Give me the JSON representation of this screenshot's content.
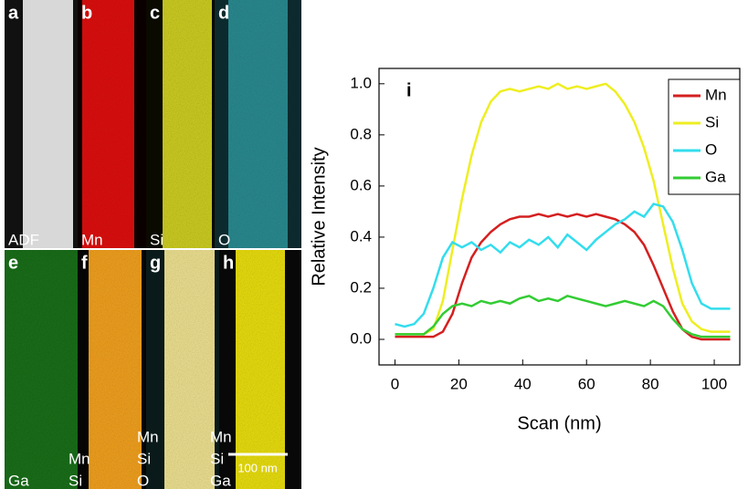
{
  "panels": [
    {
      "letter": "a",
      "labels": [
        "ADF"
      ]
    },
    {
      "letter": "b",
      "labels": [
        "Mn"
      ]
    },
    {
      "letter": "c",
      "labels": [
        "Si"
      ]
    },
    {
      "letter": "d",
      "labels": [
        "O"
      ]
    },
    {
      "letter": "e",
      "labels": [
        "Ga"
      ]
    },
    {
      "letter": "f",
      "labels": [
        "Mn",
        "Si"
      ]
    },
    {
      "letter": "g",
      "labels": [
        "Mn",
        "Si",
        "O"
      ]
    },
    {
      "letter": "h",
      "labels": [
        "Mn",
        "Si",
        "Ga"
      ]
    }
  ],
  "scale_bar": "100 nm",
  "chart_data": {
    "type": "line",
    "panel_label": "i",
    "x_label": "Scan (nm)",
    "y_label": "Relative Intensity",
    "xlim": [
      -5,
      108
    ],
    "ylim": [
      -0.1,
      1.06
    ],
    "xticks": [
      0,
      20,
      40,
      60,
      80,
      100
    ],
    "yticks": [
      {
        "value": 0,
        "label": "0.0"
      },
      0.2,
      0.4,
      0.6,
      0.8,
      {
        "value": 1,
        "label": "1.0"
      }
    ],
    "legend": "upper right",
    "x": [
      0,
      3,
      6,
      9,
      12,
      15,
      18,
      21,
      24,
      27,
      30,
      33,
      36,
      39,
      42,
      45,
      48,
      51,
      54,
      57,
      60,
      63,
      66,
      69,
      72,
      75,
      78,
      81,
      84,
      87,
      90,
      93,
      96,
      99,
      102,
      105
    ],
    "series": [
      {
        "name": "Mn",
        "color": "#d42020",
        "values": [
          0.01,
          0.01,
          0.01,
          0.01,
          0.01,
          0.03,
          0.1,
          0.22,
          0.32,
          0.38,
          0.42,
          0.45,
          0.47,
          0.48,
          0.48,
          0.49,
          0.48,
          0.49,
          0.48,
          0.49,
          0.48,
          0.49,
          0.48,
          0.47,
          0.45,
          0.42,
          0.37,
          0.29,
          0.2,
          0.11,
          0.04,
          0.01,
          0,
          0,
          0,
          0
        ]
      },
      {
        "name": "Si",
        "color": "#eeee22",
        "values": [
          0.02,
          0.02,
          0.02,
          0.02,
          0.04,
          0.15,
          0.35,
          0.55,
          0.72,
          0.85,
          0.93,
          0.97,
          0.98,
          0.97,
          0.98,
          0.99,
          0.98,
          1.0,
          0.98,
          0.99,
          0.98,
          0.99,
          1.0,
          0.97,
          0.92,
          0.85,
          0.75,
          0.62,
          0.45,
          0.28,
          0.14,
          0.07,
          0.04,
          0.03,
          0.03,
          0.03
        ]
      },
      {
        "name": "O",
        "color": "#33dded",
        "values": [
          0.06,
          0.05,
          0.06,
          0.1,
          0.2,
          0.32,
          0.38,
          0.36,
          0.38,
          0.35,
          0.37,
          0.34,
          0.38,
          0.36,
          0.39,
          0.37,
          0.4,
          0.36,
          0.41,
          0.38,
          0.35,
          0.39,
          0.42,
          0.45,
          0.47,
          0.5,
          0.48,
          0.53,
          0.52,
          0.46,
          0.35,
          0.22,
          0.14,
          0.12,
          0.12,
          0.12
        ]
      },
      {
        "name": "Ga",
        "color": "#33cc33",
        "values": [
          0.02,
          0.02,
          0.02,
          0.02,
          0.05,
          0.1,
          0.13,
          0.14,
          0.13,
          0.15,
          0.14,
          0.15,
          0.14,
          0.16,
          0.17,
          0.15,
          0.16,
          0.15,
          0.17,
          0.16,
          0.15,
          0.14,
          0.13,
          0.14,
          0.15,
          0.14,
          0.13,
          0.15,
          0.13,
          0.08,
          0.04,
          0.02,
          0.01,
          0.01,
          0.01,
          0.01
        ]
      }
    ]
  }
}
